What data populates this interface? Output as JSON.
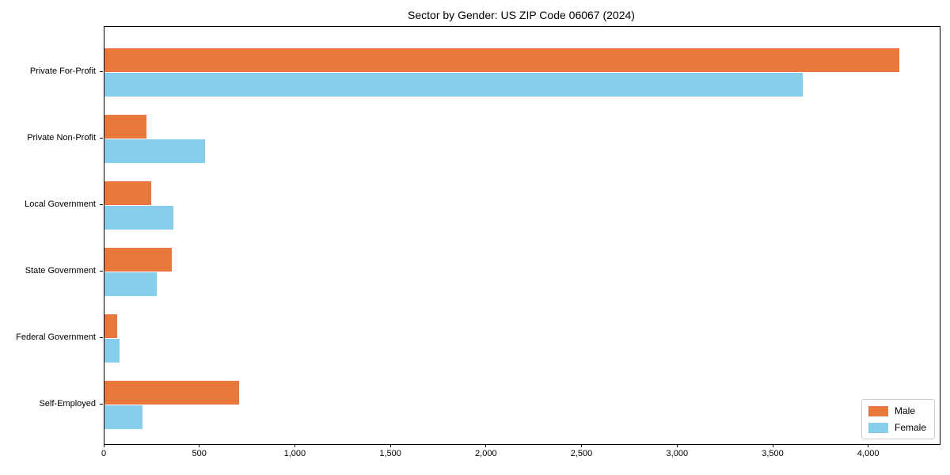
{
  "chart_data": {
    "type": "bar",
    "orientation": "horizontal",
    "title": "Sector by Gender: US ZIP Code 06067 (2024)",
    "categories": [
      "Private For-Profit",
      "Private Non-Profit",
      "Local Government",
      "State Government",
      "Federal Government",
      "Self-Employed"
    ],
    "series": [
      {
        "name": "Male",
        "color": "#E8783C",
        "values": [
          4160,
          220,
          245,
          350,
          65,
          705
        ]
      },
      {
        "name": "Female",
        "color": "#87CEEB",
        "values": [
          3655,
          525,
          360,
          275,
          80,
          200
        ]
      }
    ],
    "xlabel": "",
    "ylabel": "",
    "xlim": [
      0,
      4370
    ],
    "xticks": [
      0,
      500,
      1000,
      1500,
      2000,
      2500,
      3000,
      3500,
      4000
    ],
    "xtick_labels": [
      "0",
      "500",
      "1,000",
      "1,500",
      "2,000",
      "2,500",
      "3,000",
      "3,500",
      "4,000"
    ],
    "grid": false,
    "legend_position": "lower right",
    "plot_border_color": "#000000",
    "background_color": "#ffffff"
  }
}
